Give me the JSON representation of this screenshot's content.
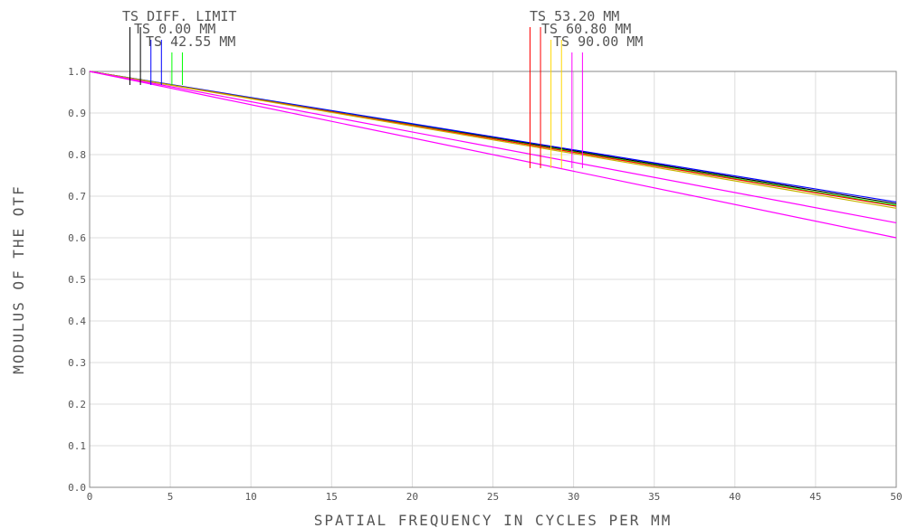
{
  "chart_data": {
    "type": "line",
    "xlabel": "SPATIAL FREQUENCY IN CYCLES PER MM",
    "ylabel": "MODULUS OF THE OTF",
    "xlim": [
      0,
      50
    ],
    "ylim": [
      0,
      1
    ],
    "xticks": [
      "0",
      "5",
      "10",
      "15",
      "20",
      "25",
      "30",
      "35",
      "40",
      "45",
      "50"
    ],
    "yticks": [
      "0.0",
      "0.1",
      "0.2",
      "0.3",
      "0.4",
      "0.5",
      "0.6",
      "0.7",
      "0.8",
      "0.9",
      "1.0"
    ],
    "grid": true,
    "legend_groups": [
      {
        "entries": [
          {
            "label": "TS DIFF. LIMIT",
            "colors": [
              "#000000",
              "#000000"
            ]
          },
          {
            "label": "TS 0.00 MM",
            "colors": [
              "#0000ff",
              "#0000ff"
            ]
          },
          {
            "label": "TS 42.55 MM",
            "colors": [
              "#00ff00",
              "#00ff00"
            ]
          }
        ]
      },
      {
        "entries": [
          {
            "label": "TS 53.20 MM",
            "colors": [
              "#ff0000",
              "#ff0000"
            ]
          },
          {
            "label": "TS 60.80 MM",
            "colors": [
              "#ffd700",
              "#ffd700"
            ]
          },
          {
            "label": "TS 90.00 MM",
            "colors": [
              "#ff00ff",
              "#ff00ff"
            ]
          }
        ]
      }
    ],
    "series": [
      {
        "color": "#000000",
        "x": [
          0,
          50
        ],
        "y": [
          1.0,
          0.682
        ]
      },
      {
        "color": "#0000ff",
        "x": [
          0,
          50
        ],
        "y": [
          1.0,
          0.686
        ]
      },
      {
        "color": "#00ff00",
        "x": [
          0,
          50
        ],
        "y": [
          1.0,
          0.678
        ]
      },
      {
        "color": "#ff0000",
        "x": [
          0,
          50
        ],
        "y": [
          1.0,
          0.676
        ]
      },
      {
        "color": "#c8b400",
        "x": [
          0,
          50
        ],
        "y": [
          1.0,
          0.671
        ]
      },
      {
        "color": "#ff00ff",
        "x": [
          0,
          50
        ],
        "y": [
          1.0,
          0.636
        ]
      },
      {
        "color": "#ff00ff",
        "x": [
          0,
          50
        ],
        "y": [
          1.0,
          0.6
        ]
      }
    ]
  }
}
